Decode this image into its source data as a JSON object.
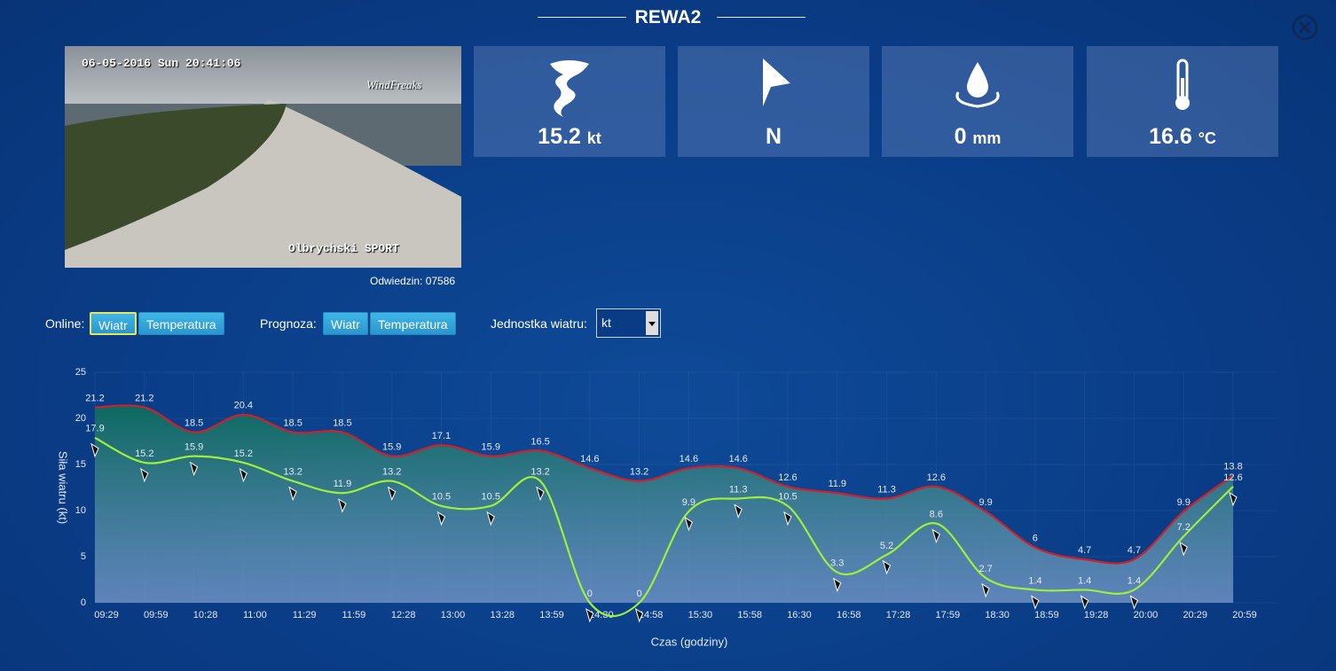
{
  "header": {
    "title": "REWA2"
  },
  "tiles": [
    {
      "value": 15.2,
      "unit": "kt"
    },
    {
      "value": "N"
    },
    {
      "value": 0,
      "unit": "mm"
    },
    {
      "value": 16.6,
      "unit": "°C"
    }
  ],
  "camera": {
    "timestamp": "06-05-2016 Sun 20:41:06",
    "logo": "WindFreaks",
    "caption": "Olbrychski SPORT",
    "visits": "Odwiedzin: 07586"
  },
  "controls": {
    "online_label": "Online:",
    "online_buttons": [
      "Wiatr",
      "Temperatura"
    ],
    "forecast_label": "Prognoza:",
    "forecast_buttons": [
      "Wiatr",
      "Temperatura"
    ],
    "unit_label": "Jednostka wiatru:",
    "unit_value": "kt"
  },
  "chart_data": {
    "type": "line",
    "x_label": "Czas (godziny)",
    "y_label": "Siła wiatru (kt)",
    "categories": [
      "09:29",
      "09:59",
      "10:28",
      "11:00",
      "11:29",
      "11:59",
      "12:28",
      "13:00",
      "13:28",
      "13:59",
      "14:30",
      "14:58",
      "15:30",
      "15:58",
      "16:30",
      "16:58",
      "17:28",
      "17:59",
      "18:30",
      "18:59",
      "19:28",
      "20:00",
      "20:29",
      "20:59"
    ],
    "series": [
      {
        "color": "#d0202a",
        "values": [
          21.2,
          21.2,
          18.5,
          20.4,
          18.5,
          18.5,
          15.9,
          17.1,
          15.9,
          16.5,
          14.6,
          13.2,
          14.6,
          14.6,
          12.6,
          11.9,
          11.3,
          12.6,
          9.9,
          6,
          4.7,
          4.7,
          9.9,
          13.8
        ]
      },
      {
        "color": "#9ef03a",
        "values": [
          17.9,
          15.2,
          15.9,
          15.2,
          13.2,
          11.9,
          13.2,
          10.5,
          10.5,
          13.2,
          0,
          0,
          9.9,
          11.3,
          10.5,
          3.3,
          5.2,
          8.6,
          2.7,
          1.4,
          1.4,
          1.4,
          7.2,
          12.6
        ]
      }
    ],
    "ylim": [
      0,
      25
    ],
    "yticks": [
      0,
      5,
      10,
      15,
      20,
      25
    ],
    "grid": true
  }
}
